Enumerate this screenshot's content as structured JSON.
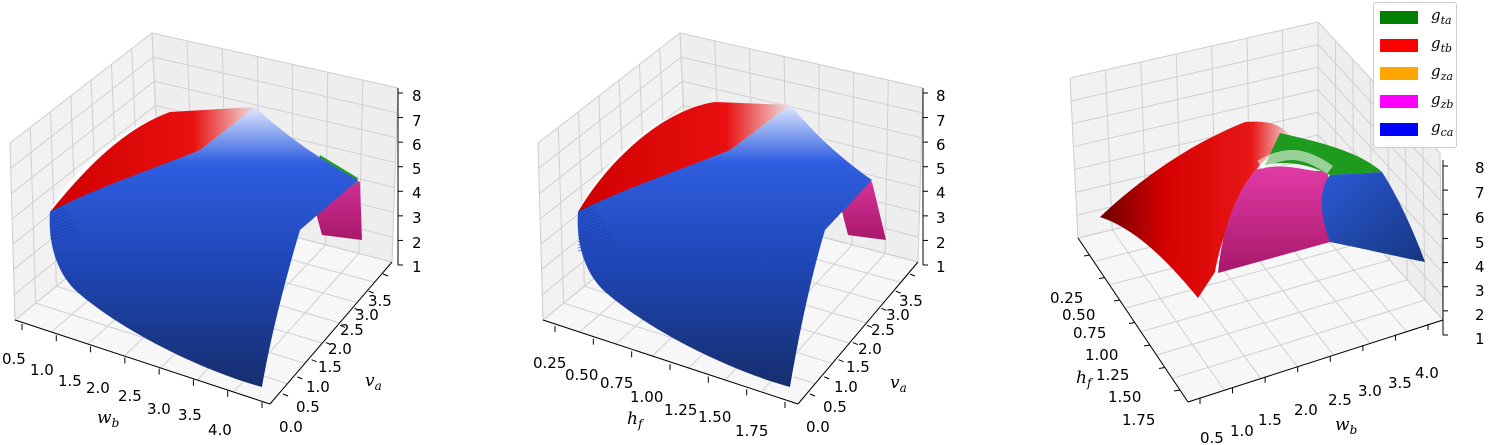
{
  "legend": [
    {
      "key": "ta",
      "label": "g",
      "sub": "ta",
      "color": "#008000"
    },
    {
      "key": "tb",
      "label": "g",
      "sub": "tb",
      "color": "#ff0000"
    },
    {
      "key": "za",
      "label": "g",
      "sub": "za",
      "color": "#ffa500"
    },
    {
      "key": "zb",
      "label": "g",
      "sub": "zb",
      "color": "#ff00ff"
    },
    {
      "key": "ca",
      "label": "g",
      "sub": "ca",
      "color": "#0000ff"
    }
  ],
  "chart_data": [
    {
      "type": "surface3d",
      "x_axis": {
        "label": "w",
        "sub": "b",
        "ticks": [
          "0.5",
          "1.0",
          "1.5",
          "2.0",
          "2.5",
          "3.0",
          "3.5",
          "4.0"
        ]
      },
      "y_axis": {
        "label": "v",
        "sub": "a",
        "ticks": [
          "0.0",
          "0.5",
          "1.0",
          "1.5",
          "2.0",
          "2.5",
          "3.0",
          "3.5"
        ]
      },
      "z_axis": {
        "ticks": [
          "1",
          "2",
          "3",
          "4",
          "5",
          "6",
          "7",
          "8"
        ]
      },
      "zlim": [
        1,
        8
      ],
      "regions": [
        "tb",
        "ca",
        "ta",
        "zb"
      ]
    },
    {
      "type": "surface3d",
      "x_axis": {
        "label": "h",
        "sub": "f",
        "ticks": [
          "0.25",
          "0.50",
          "0.75",
          "1.00",
          "1.25",
          "1.50",
          "1.75"
        ]
      },
      "y_axis": {
        "label": "v",
        "sub": "a",
        "ticks": [
          "0.0",
          "0.5",
          "1.0",
          "1.5",
          "2.0",
          "2.5",
          "3.0",
          "3.5"
        ]
      },
      "z_axis": {
        "ticks": [
          "1",
          "2",
          "3",
          "4",
          "5",
          "6",
          "7",
          "8"
        ]
      },
      "zlim": [
        1,
        8
      ],
      "regions": [
        "tb",
        "ca",
        "zb"
      ]
    },
    {
      "type": "surface3d",
      "x_axis": {
        "label": "h",
        "sub": "f",
        "ticks": [
          "0.25",
          "0.50",
          "0.75",
          "1.00",
          "1.25",
          "1.50",
          "1.75"
        ]
      },
      "y_axis": {
        "label": "w",
        "sub": "b",
        "ticks": [
          "0.5",
          "1.0",
          "1.5",
          "2.0",
          "2.5",
          "3.0",
          "3.5",
          "4.0"
        ]
      },
      "z_axis": {
        "ticks": [
          "1",
          "2",
          "3",
          "4",
          "5",
          "6",
          "7",
          "8"
        ]
      },
      "zlim": [
        1,
        8
      ],
      "regions": [
        "tb",
        "zb",
        "ta",
        "ca"
      ]
    }
  ]
}
